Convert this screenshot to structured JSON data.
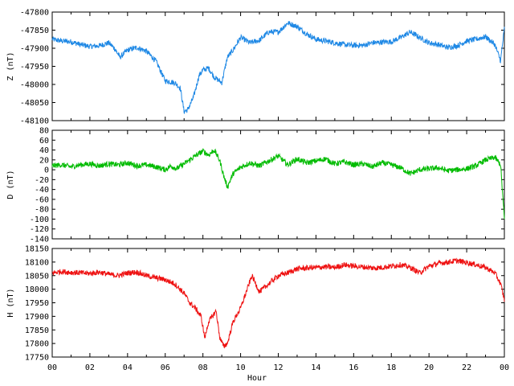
{
  "chart_data": [
    {
      "type": "line",
      "ylabel": "Z (nT)",
      "ylim": [
        -48100,
        -47800
      ],
      "yticks": [
        -47800,
        -47850,
        -47900,
        -47950,
        -48000,
        -48050,
        -48100
      ],
      "color": "#1e88e5",
      "x": [
        0,
        0.5,
        1,
        1.5,
        2,
        2.5,
        3,
        3.3,
        3.6,
        4,
        4.5,
        5,
        5.5,
        6,
        6.5,
        6.8,
        7,
        7.2,
        7.5,
        7.8,
        8,
        8.3,
        8.6,
        9,
        9.3,
        9.6,
        10,
        10.5,
        11,
        11.5,
        12,
        12.5,
        13,
        13.5,
        14,
        14.5,
        15,
        15.5,
        16,
        16.5,
        17,
        17.5,
        18,
        18.5,
        19,
        19.5,
        20,
        20.5,
        21,
        21.5,
        22,
        22.5,
        23,
        23.5,
        23.8,
        24
      ],
      "values": [
        -47875,
        -47880,
        -47882,
        -47890,
        -47895,
        -47893,
        -47885,
        -47900,
        -47925,
        -47905,
        -47898,
        -47908,
        -47935,
        -47990,
        -47995,
        -48010,
        -48075,
        -48070,
        -48035,
        -47975,
        -47960,
        -47955,
        -47980,
        -47995,
        -47925,
        -47905,
        -47870,
        -47885,
        -47878,
        -47855,
        -47855,
        -47830,
        -47840,
        -47860,
        -47875,
        -47880,
        -47885,
        -47890,
        -47892,
        -47892,
        -47885,
        -47883,
        -47882,
        -47870,
        -47855,
        -47870,
        -47885,
        -47890,
        -47898,
        -47893,
        -47880,
        -47875,
        -47868,
        -47890,
        -47935,
        -47845
      ]
    },
    {
      "type": "line",
      "ylabel": "D (nT)",
      "ylim": [
        -140,
        80
      ],
      "yticks": [
        80,
        60,
        40,
        20,
        0,
        -20,
        -40,
        -60,
        -80,
        -100,
        -120,
        -140
      ],
      "color": "#00bb00",
      "x": [
        0,
        0.5,
        1,
        1.5,
        2,
        2.5,
        3,
        3.5,
        4,
        4.5,
        5,
        5.5,
        6,
        6.3,
        6.6,
        7,
        7.3,
        7.6,
        8,
        8.3,
        8.6,
        8.9,
        9.1,
        9.3,
        9.6,
        10,
        10.5,
        11,
        11.5,
        12,
        12.5,
        13,
        13.5,
        14,
        14.5,
        15,
        15.5,
        16,
        16.5,
        17,
        17.5,
        18,
        18.5,
        19,
        19.5,
        20,
        20.5,
        21,
        21.5,
        22,
        22.5,
        23,
        23.5,
        23.8,
        24
      ],
      "values": [
        8,
        10,
        6,
        10,
        12,
        8,
        12,
        10,
        14,
        8,
        10,
        6,
        0,
        8,
        2,
        12,
        20,
        28,
        38,
        30,
        40,
        18,
        -12,
        -35,
        -8,
        5,
        14,
        8,
        18,
        28,
        10,
        22,
        14,
        18,
        22,
        12,
        16,
        10,
        12,
        6,
        14,
        10,
        4,
        -8,
        0,
        2,
        4,
        -2,
        0,
        2,
        8,
        20,
        25,
        10,
        -100
      ]
    },
    {
      "type": "line",
      "ylabel": "H (nT)",
      "xlabel": "Hour",
      "ylim": [
        17750,
        18150
      ],
      "yticks": [
        18150,
        18100,
        18050,
        18000,
        17950,
        17900,
        17850,
        17800,
        17750
      ],
      "color": "#ee1111",
      "x": [
        0,
        0.5,
        1,
        1.5,
        2,
        2.5,
        3,
        3.5,
        4,
        4.5,
        5,
        5.5,
        6,
        6.5,
        7,
        7.3,
        7.6,
        7.9,
        8.1,
        8.3,
        8.5,
        8.7,
        8.9,
        9.1,
        9.3,
        9.6,
        10,
        10.3,
        10.6,
        11,
        11.5,
        12,
        12.5,
        13,
        13.5,
        14,
        14.5,
        15,
        15.5,
        16,
        16.5,
        17,
        17.5,
        18,
        18.5,
        19,
        19.5,
        20,
        20.5,
        21,
        21.5,
        22,
        22.5,
        23,
        23.5,
        23.8,
        24
      ],
      "values": [
        18060,
        18065,
        18062,
        18060,
        18058,
        18063,
        18055,
        18050,
        18060,
        18063,
        18050,
        18042,
        18035,
        18020,
        17985,
        17950,
        17930,
        17900,
        17820,
        17880,
        17900,
        17920,
        17820,
        17790,
        17800,
        17880,
        17930,
        17990,
        18050,
        17990,
        18020,
        18050,
        18060,
        18075,
        18078,
        18080,
        18082,
        18080,
        18090,
        18085,
        18082,
        18078,
        18080,
        18085,
        18090,
        18080,
        18060,
        18085,
        18095,
        18100,
        18105,
        18098,
        18090,
        18080,
        18060,
        18020,
        17960
      ]
    }
  ],
  "xaxis": {
    "min": 0,
    "max": 24,
    "ticks": [
      "00",
      "02",
      "04",
      "06",
      "08",
      "10",
      "12",
      "14",
      "16",
      "18",
      "20",
      "22",
      "00"
    ]
  }
}
